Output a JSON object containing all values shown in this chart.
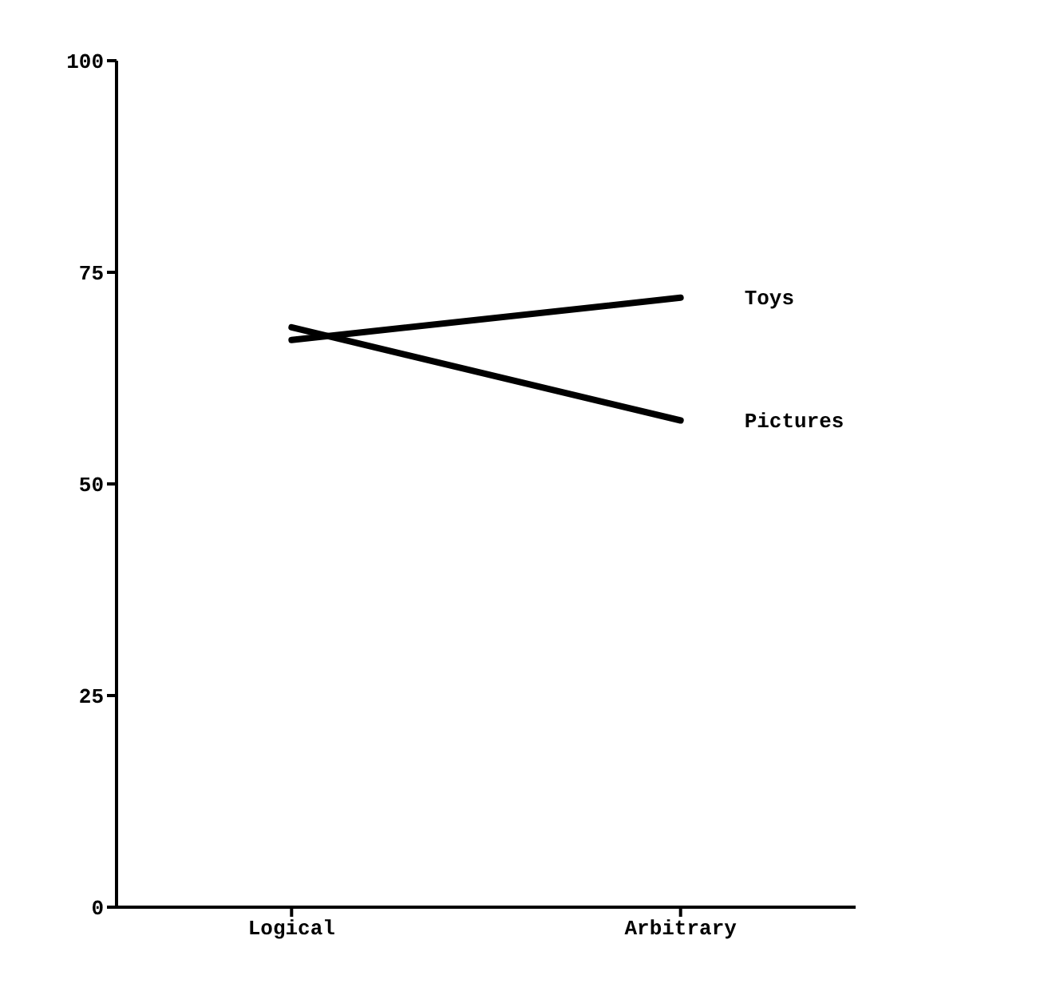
{
  "chart_data": {
    "type": "line",
    "categories": [
      "Logical",
      "Arbitrary"
    ],
    "series": [
      {
        "name": "Toys",
        "color": "#000000",
        "values": [
          67,
          72
        ]
      },
      {
        "name": "Pictures",
        "color": "#000000",
        "values": [
          68.5,
          57.5
        ]
      }
    ],
    "ylim": [
      0,
      100
    ],
    "yticks": [
      0,
      25,
      50,
      75,
      100
    ],
    "grid": false,
    "legend": false,
    "marker": "none",
    "line_style": "solid"
  }
}
